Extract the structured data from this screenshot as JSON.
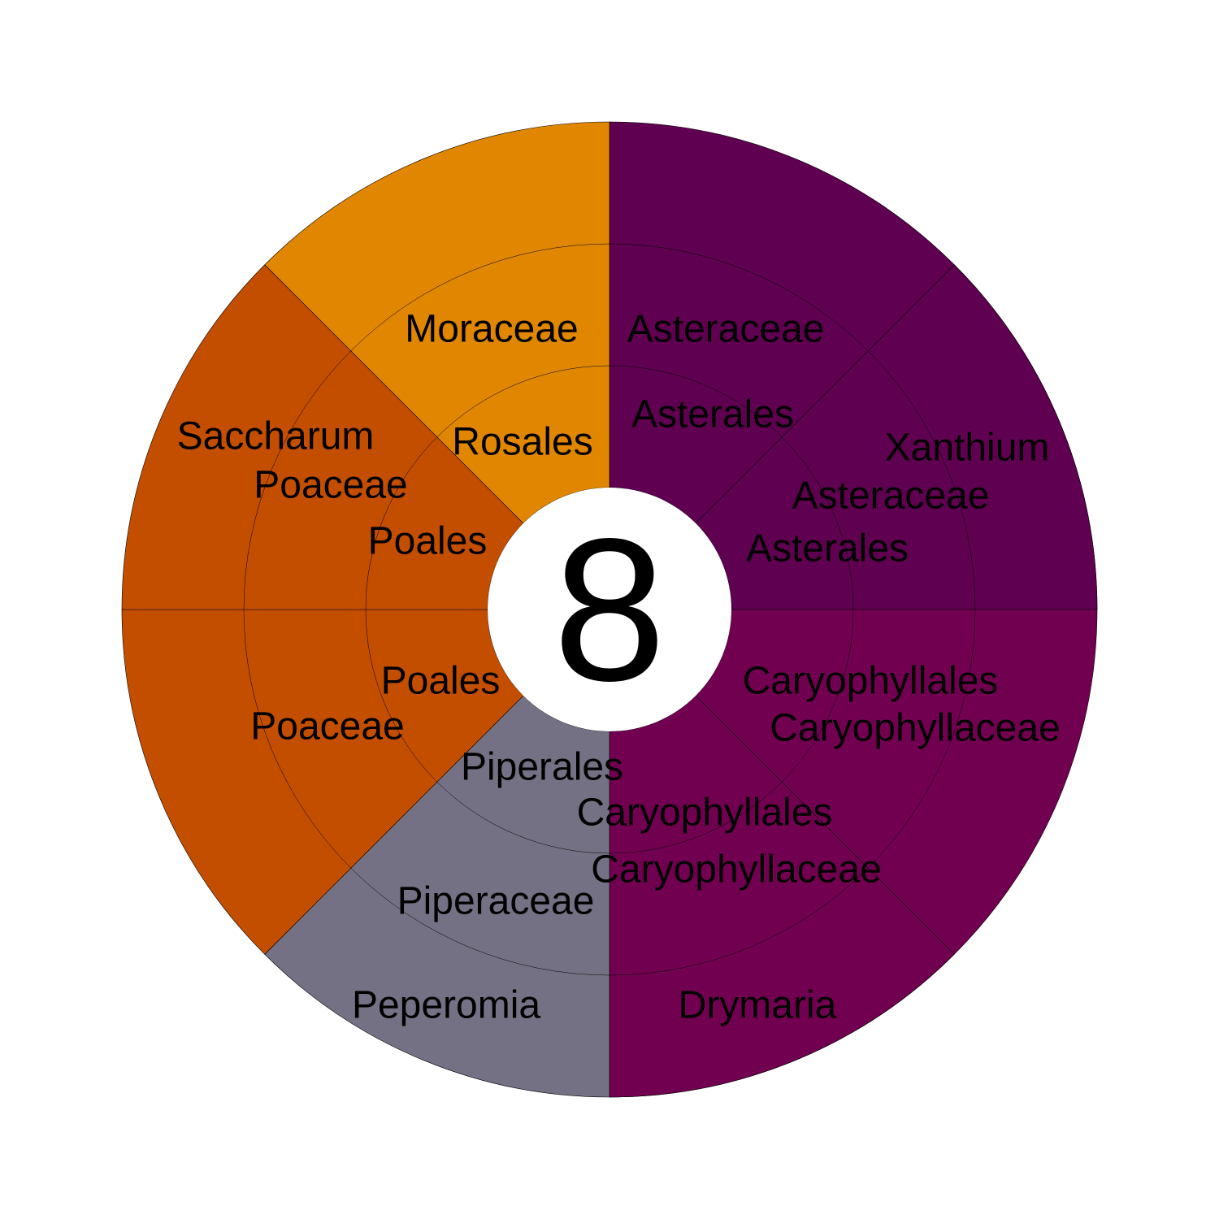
{
  "chart_data": {
    "type": "sunburst",
    "center_label": "8",
    "levels": [
      "order",
      "family",
      "genus"
    ],
    "segments": [
      {
        "start": 0,
        "end": 90,
        "color": "#5f0050",
        "order": "Asterales",
        "family": "Asteraceae",
        "genus": null
      },
      {
        "start": 45,
        "end": 90,
        "color": "#5f0050",
        "order": "Asterales",
        "family": "Asteraceae",
        "genus": "Xanthium"
      },
      {
        "start": 90,
        "end": 180,
        "color": "#720051",
        "order": "Caryophyllales",
        "family": "Caryophyllaceae",
        "genus": null
      },
      {
        "start": 135,
        "end": 180,
        "color": "#720051",
        "order": "Caryophyllales",
        "family": "Caryophyllaceae",
        "genus": "Drymaria"
      },
      {
        "start": 180,
        "end": 225,
        "color": "#757184",
        "order": "Piperales",
        "family": "Piperaceae",
        "genus": "Peperomia"
      },
      {
        "start": 225,
        "end": 270,
        "color": "#c44e00",
        "order": "Poales",
        "family": "Poaceae",
        "genus": null
      },
      {
        "start": 270,
        "end": 315,
        "color": "#c44e00",
        "order": "Poales",
        "family": "Poaceae",
        "genus": "Saccharum"
      },
      {
        "start": 315,
        "end": 360,
        "color": "#e08600",
        "order": "Rosales",
        "family": "Moraceae",
        "genus": null
      }
    ],
    "labels": [
      {
        "id": "asterales-1",
        "text": "Asterales"
      },
      {
        "id": "asteraceae-1",
        "text": "Asteraceae"
      },
      {
        "id": "asterales-2",
        "text": "Asterales"
      },
      {
        "id": "asteraceae-2",
        "text": "Asteraceae"
      },
      {
        "id": "xanthium",
        "text": "Xanthium"
      },
      {
        "id": "caryophyllales-1",
        "text": "Caryophyllales"
      },
      {
        "id": "caryophyllaceae-1",
        "text": "Caryophyllaceae"
      },
      {
        "id": "caryophyllales-2",
        "text": "Caryophyllales"
      },
      {
        "id": "caryophyllaceae-2",
        "text": "Caryophyllaceae"
      },
      {
        "id": "drymaria",
        "text": "Drymaria"
      },
      {
        "id": "piperales",
        "text": "Piperales"
      },
      {
        "id": "piperaceae",
        "text": "Piperaceae"
      },
      {
        "id": "peperomia",
        "text": "Peperomia"
      },
      {
        "id": "poales-1",
        "text": "Poales"
      },
      {
        "id": "poaceae-1",
        "text": "Poaceae"
      },
      {
        "id": "poales-2",
        "text": "Poales"
      },
      {
        "id": "poaceae-2",
        "text": "Poaceae"
      },
      {
        "id": "saccharum",
        "text": "Saccharum"
      },
      {
        "id": "rosales",
        "text": "Rosales"
      },
      {
        "id": "moraceae",
        "text": "Moraceae"
      }
    ]
  }
}
